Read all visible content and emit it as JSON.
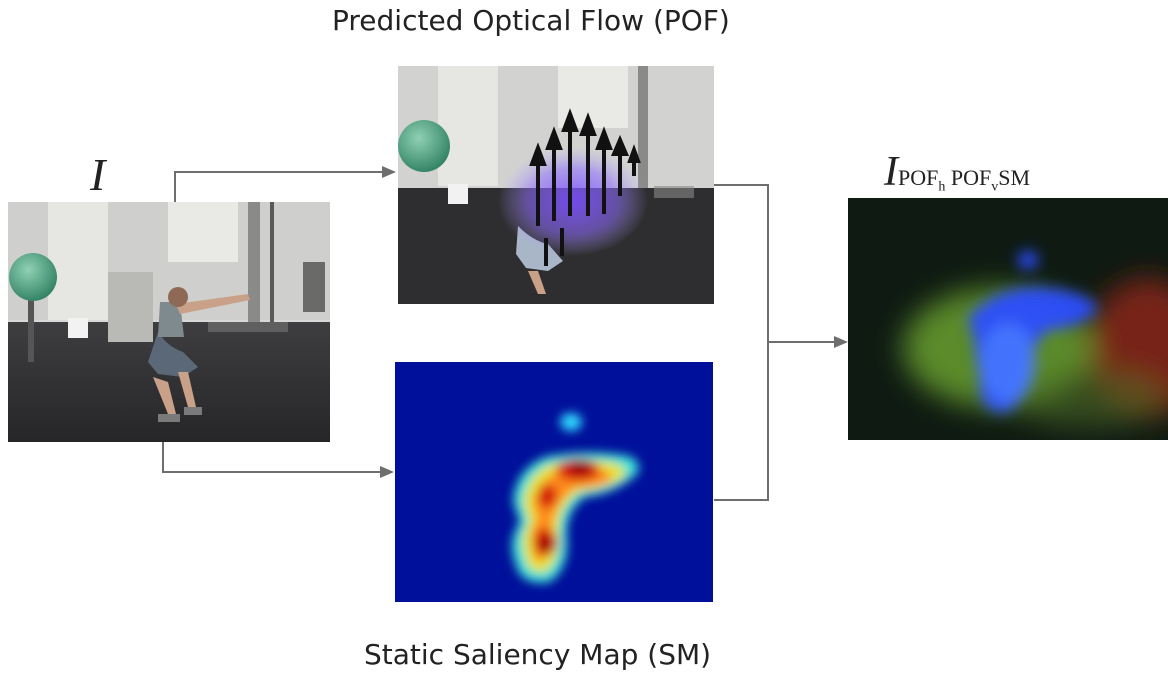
{
  "titles": {
    "flow": "Predicted Optical Flow (POF)",
    "saliency": "Static Saliency Map (SM)"
  },
  "symbols": {
    "input": "I",
    "output_main": "I",
    "output_pof": "POF",
    "output_h": "h",
    "output_v": "v",
    "output_sm": "SM"
  },
  "colors": {
    "arrow": "#6e6e6e",
    "saliency_bg": "#00109a",
    "saliency_hot": "#8b0000",
    "flow_overlay": "#7a4cff",
    "output_bg": "#0e1a12",
    "output_green": "#6ea82e",
    "output_blue": "#2b4dff",
    "output_red": "#8a2318"
  }
}
